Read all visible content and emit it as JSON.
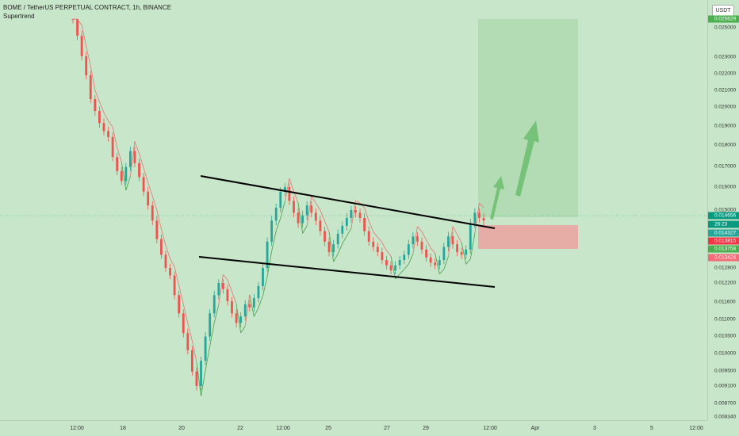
{
  "symbol_title": "BOME / TetherUS PERPETUAL CONTRACT, 1h, BINANCE",
  "indicator_name": "Supertrend",
  "currency_label": "USDT",
  "price_ticks": [
    "0.025000",
    "0.023000",
    "0.022000",
    "0.021000",
    "0.020000",
    "0.019000",
    "0.018000",
    "0.017000",
    "0.016000",
    "0.015000",
    "0.012800",
    "0.012200",
    "0.011600",
    "0.011000",
    "0.010500",
    "0.010000",
    "0.009500",
    "0.009100",
    "0.008700",
    "0.008340"
  ],
  "price_tags": {
    "target": "0.025629",
    "current": "0.014656",
    "countdown": "26:23",
    "entry": "0.014327",
    "supertrend_red": "0.013815",
    "supertrend_green": "0.013758",
    "stop": "0.013424"
  },
  "time_ticks": [
    "12:00",
    "18",
    "20",
    "22",
    "12:00",
    "25",
    "27",
    "29",
    "12:00",
    "Apr",
    "3",
    "5",
    "12:00"
  ],
  "colors": {
    "background": "#c8e6c9",
    "bull": "#26a69a",
    "bear": "#ef5350",
    "target_zone": "#a5d6a7",
    "stop_zone": "#ef9a9a",
    "arrow": "#66bb6a"
  },
  "chart_data": {
    "type": "candlestick",
    "price_range": [
      0.00834,
      0.0256
    ],
    "candle_closes": [
      0.0256,
      0.0245,
      0.0232,
      0.022,
      0.0205,
      0.0198,
      0.0192,
      0.0188,
      0.0185,
      0.0175,
      0.0168,
      0.0163,
      0.017,
      0.0178,
      0.0172,
      0.0165,
      0.0158,
      0.0152,
      0.0146,
      0.0139,
      0.0133,
      0.0128,
      0.0125,
      0.0118,
      0.0112,
      0.0106,
      0.0101,
      0.0095,
      0.0091,
      0.0098,
      0.0105,
      0.0112,
      0.0118,
      0.0122,
      0.012,
      0.0116,
      0.0112,
      0.0109,
      0.0111,
      0.0115,
      0.0114,
      0.0117,
      0.0121,
      0.0128,
      0.0138,
      0.0146,
      0.0151,
      0.0158,
      0.016,
      0.0154,
      0.0149,
      0.0145,
      0.0148,
      0.0152,
      0.0149,
      0.0146,
      0.0142,
      0.0138,
      0.0134,
      0.0137,
      0.0141,
      0.0144,
      0.0147,
      0.015,
      0.0149,
      0.0147,
      0.0142,
      0.0138,
      0.0136,
      0.0134,
      0.0131,
      0.0129,
      0.0127,
      0.0129,
      0.0131,
      0.0133,
      0.0137,
      0.014,
      0.0138,
      0.0135,
      0.0132,
      0.013,
      0.0129,
      0.0131,
      0.0136,
      0.014,
      0.0137,
      0.0134,
      0.0133,
      0.0135,
      0.0145,
      0.0149,
      0.0147,
      0.0146
    ]
  }
}
